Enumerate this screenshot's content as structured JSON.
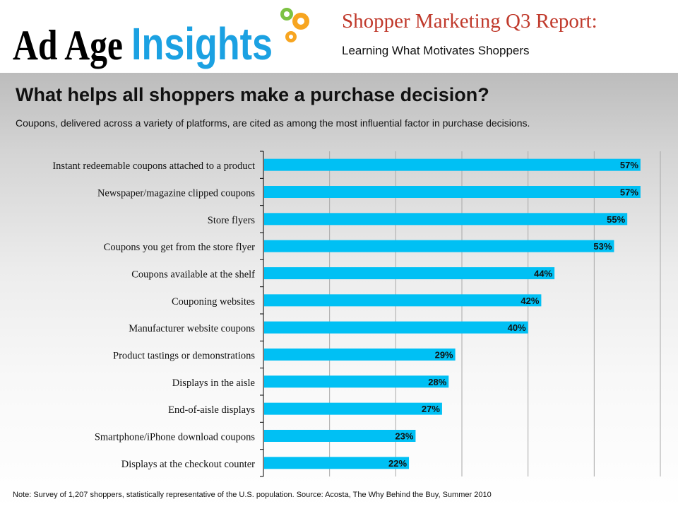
{
  "header": {
    "logo_text": "Ad Age Insights",
    "report_title": "Shopper Marketing Q3 Report:",
    "report_subtitle": "Learning What Motivates Shoppers"
  },
  "slide": {
    "headline": "What helps all shoppers make a purchase decision?",
    "intro": "Coupons, delivered across a variety of platforms, are cited as among the most influential factor in purchase decisions.",
    "note": "Note: Survey of 1,207 shoppers, statistically representative of the U.S. population. Source: Acosta, The Why Behind the Buy, Summer 2010"
  },
  "colors": {
    "bar": "#00c0f4",
    "gridline": "#a8a8a8",
    "axis": "#000000",
    "brand_blue": "#1ba1e2",
    "brand_red": "#c0392b"
  },
  "chart_data": {
    "type": "bar",
    "orientation": "horizontal",
    "title": "",
    "xlabel": "",
    "ylabel": "",
    "unit": "%",
    "xlim": [
      0,
      60
    ],
    "grid": true,
    "legend": "none",
    "categories": [
      "Instant redeemable coupons attached to a product",
      "Newspaper/magazine clipped coupons",
      "Store flyers",
      "Coupons you get from the store flyer",
      "Coupons available at the shelf",
      "Couponing websites",
      "Manufacturer website coupons",
      "Product tastings or demonstrations",
      "Displays in the aisle",
      "End-of-aisle displays",
      "Smartphone/iPhone download coupons",
      "Displays at the checkout counter"
    ],
    "values": [
      57,
      57,
      55,
      53,
      44,
      42,
      40,
      29,
      28,
      27,
      23,
      22
    ],
    "data_labels": [
      "57%",
      "57%",
      "55%",
      "53%",
      "44%",
      "42%",
      "40%",
      "29%",
      "28%",
      "27%",
      "23%",
      "22%"
    ]
  }
}
